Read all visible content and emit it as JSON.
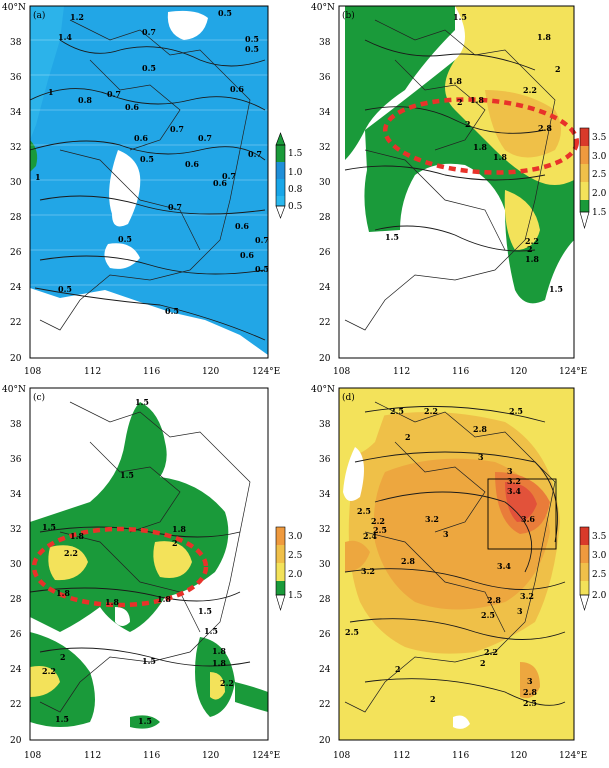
{
  "panels": [
    {
      "id": "a",
      "label": "(a)",
      "colorbar": {
        "ticks": [
          "1.5",
          "1.0",
          "0.8",
          "0.5"
        ],
        "colors": [
          "#1a9a3a",
          "#1f8fd8",
          "#19a6e8",
          "#2bb8ee"
        ]
      },
      "contour_labels": [
        "1.2",
        "1.4",
        "0.7",
        "0.5",
        "0.5",
        "0.5",
        "0.5",
        "0.6",
        "0.8",
        "0.7",
        "0.6",
        "0.7",
        "0.6",
        "0.7",
        "0.5",
        "0.6",
        "0.6",
        "0.7",
        "0.7",
        "0.7",
        "0.5",
        "0.6",
        "0.6",
        "0.7",
        "0.5",
        "0.5",
        "0.5",
        "1",
        "1"
      ]
    },
    {
      "id": "b",
      "label": "(b)",
      "colorbar": {
        "ticks": [
          "3.5",
          "3.0",
          "2.5",
          "2.0",
          "1.5"
        ],
        "colors": [
          "#d93a2a",
          "#ef9a3e",
          "#f0c04a",
          "#f3e25a",
          "#1a9a3a"
        ]
      },
      "contour_labels": [
        "1.5",
        "1.8",
        "1.8",
        "2",
        "1.8",
        "2",
        "2.2",
        "2",
        "2.8",
        "1.8",
        "1.5",
        "1.8",
        "2.2",
        "2",
        "1.8",
        "1.5"
      ]
    },
    {
      "id": "c",
      "label": "(c)",
      "colorbar": {
        "ticks": [
          "3.0",
          "2.5",
          "2.0",
          "1.5"
        ],
        "colors": [
          "#ef9a3e",
          "#f0c04a",
          "#f3e25a",
          "#1a9a3a"
        ]
      },
      "contour_labels": [
        "1.5",
        "1.5",
        "1.5",
        "1.8",
        "1.8",
        "2.2",
        "2",
        "1.8",
        "1.8",
        "1.8",
        "1.5",
        "1.5",
        "2.2",
        "2",
        "1.8",
        "1.8",
        "2.2",
        "1.5",
        "1.5",
        "1.5"
      ]
    },
    {
      "id": "d",
      "label": "(d)",
      "colorbar": {
        "ticks": [
          "3.5",
          "3.0",
          "2.5",
          "2.0"
        ],
        "colors": [
          "#d93a2a",
          "#ef9a3e",
          "#f0c04a",
          "#f3e25a"
        ]
      },
      "contour_labels": [
        "2.5",
        "2.2",
        "2.5",
        "2.8",
        "2",
        "3",
        "3",
        "3.2",
        "3.4",
        "3.6",
        "2.5",
        "2.2",
        "2.4",
        "2.5",
        "3.2",
        "3",
        "3.2",
        "2.8",
        "3.4",
        "2.8",
        "3.2",
        "3",
        "2.5",
        "2.2",
        "2",
        "2.5",
        "3",
        "2.8",
        "2.5",
        "2",
        "2"
      ]
    }
  ],
  "axes": {
    "x_ticks": [
      "108",
      "112",
      "116",
      "120",
      "124°E"
    ],
    "y_ticks": [
      "40°N",
      "38",
      "36",
      "34",
      "32",
      "30",
      "28",
      "26",
      "24",
      "22",
      "20"
    ]
  }
}
